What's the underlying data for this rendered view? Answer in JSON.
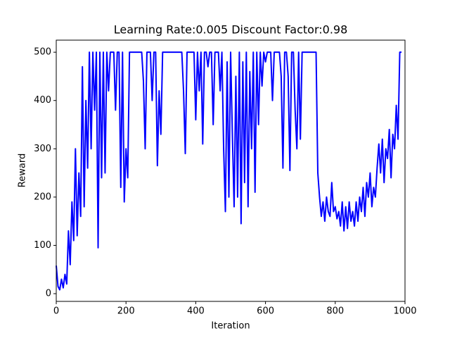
{
  "chart_data": {
    "type": "line",
    "title": "Learning Rate:0.005 Discount Factor:0.98",
    "x_label": "Iteration",
    "y_label": "Reward",
    "xlim": [
      0,
      1000
    ],
    "ylim": [
      -16,
      525
    ],
    "xticks": [
      0,
      200,
      400,
      600,
      800,
      1000
    ],
    "yticks": [
      0,
      100,
      200,
      300,
      400,
      500
    ],
    "series": [
      {
        "color": "#0000ff",
        "x": [
          0,
          5,
          10,
          15,
          20,
          25,
          30,
          35,
          40,
          45,
          50,
          55,
          60,
          65,
          70,
          75,
          80,
          85,
          90,
          95,
          100,
          105,
          110,
          115,
          120,
          125,
          130,
          135,
          140,
          145,
          150,
          155,
          160,
          165,
          170,
          175,
          180,
          185,
          190,
          195,
          200,
          205,
          210,
          215,
          220,
          225,
          230,
          235,
          240,
          245,
          250,
          255,
          260,
          265,
          270,
          275,
          280,
          285,
          290,
          295,
          300,
          305,
          310,
          315,
          320,
          325,
          330,
          335,
          340,
          345,
          350,
          355,
          360,
          365,
          370,
          375,
          380,
          385,
          390,
          395,
          400,
          405,
          410,
          415,
          420,
          425,
          430,
          435,
          440,
          445,
          450,
          455,
          460,
          465,
          470,
          475,
          480,
          485,
          490,
          495,
          500,
          505,
          510,
          515,
          520,
          525,
          530,
          535,
          540,
          545,
          550,
          555,
          560,
          565,
          570,
          575,
          580,
          585,
          590,
          595,
          600,
          605,
          610,
          615,
          620,
          625,
          630,
          635,
          640,
          645,
          650,
          655,
          660,
          665,
          670,
          675,
          680,
          685,
          690,
          695,
          700,
          705,
          710,
          715,
          720,
          725,
          730,
          735,
          740,
          745,
          750,
          755,
          760,
          765,
          770,
          775,
          780,
          785,
          790,
          795,
          800,
          805,
          810,
          815,
          820,
          825,
          830,
          835,
          840,
          845,
          850,
          855,
          860,
          865,
          870,
          875,
          880,
          885,
          890,
          895,
          900,
          905,
          910,
          915,
          920,
          925,
          930,
          935,
          940,
          945,
          950,
          955,
          960,
          965,
          970,
          975,
          980,
          985,
          990
        ],
        "values": [
          58,
          15,
          8,
          30,
          12,
          40,
          20,
          130,
          60,
          190,
          110,
          300,
          120,
          250,
          160,
          470,
          180,
          400,
          260,
          500,
          300,
          500,
          380,
          500,
          95,
          500,
          240,
          500,
          250,
          500,
          420,
          500,
          500,
          500,
          380,
          500,
          500,
          220,
          500,
          190,
          300,
          240,
          500,
          500,
          500,
          500,
          500,
          500,
          500,
          500,
          440,
          300,
          500,
          500,
          500,
          400,
          500,
          500,
          265,
          420,
          330,
          500,
          500,
          500,
          500,
          500,
          500,
          500,
          500,
          500,
          500,
          500,
          500,
          420,
          290,
          500,
          500,
          500,
          500,
          500,
          360,
          500,
          420,
          500,
          310,
          500,
          500,
          470,
          500,
          500,
          350,
          500,
          500,
          500,
          420,
          500,
          300,
          170,
          480,
          200,
          500,
          330,
          180,
          450,
          200,
          500,
          145,
          480,
          230,
          500,
          180,
          460,
          300,
          500,
          210,
          500,
          350,
          500,
          430,
          500,
          480,
          500,
          500,
          500,
          400,
          500,
          500,
          500,
          500,
          450,
          260,
          500,
          500,
          450,
          255,
          500,
          500,
          380,
          300,
          500,
          320,
          500,
          500,
          500,
          500,
          500,
          500,
          500,
          500,
          500,
          250,
          200,
          160,
          190,
          150,
          200,
          170,
          160,
          230,
          170,
          180,
          155,
          170,
          140,
          190,
          130,
          180,
          135,
          190,
          150,
          170,
          140,
          190,
          150,
          200,
          170,
          220,
          160,
          230,
          200,
          250,
          180,
          220,
          200,
          260,
          310,
          250,
          320,
          230,
          300,
          280,
          340,
          240,
          330,
          300,
          390,
          320,
          500,
          500
        ]
      }
    ]
  }
}
